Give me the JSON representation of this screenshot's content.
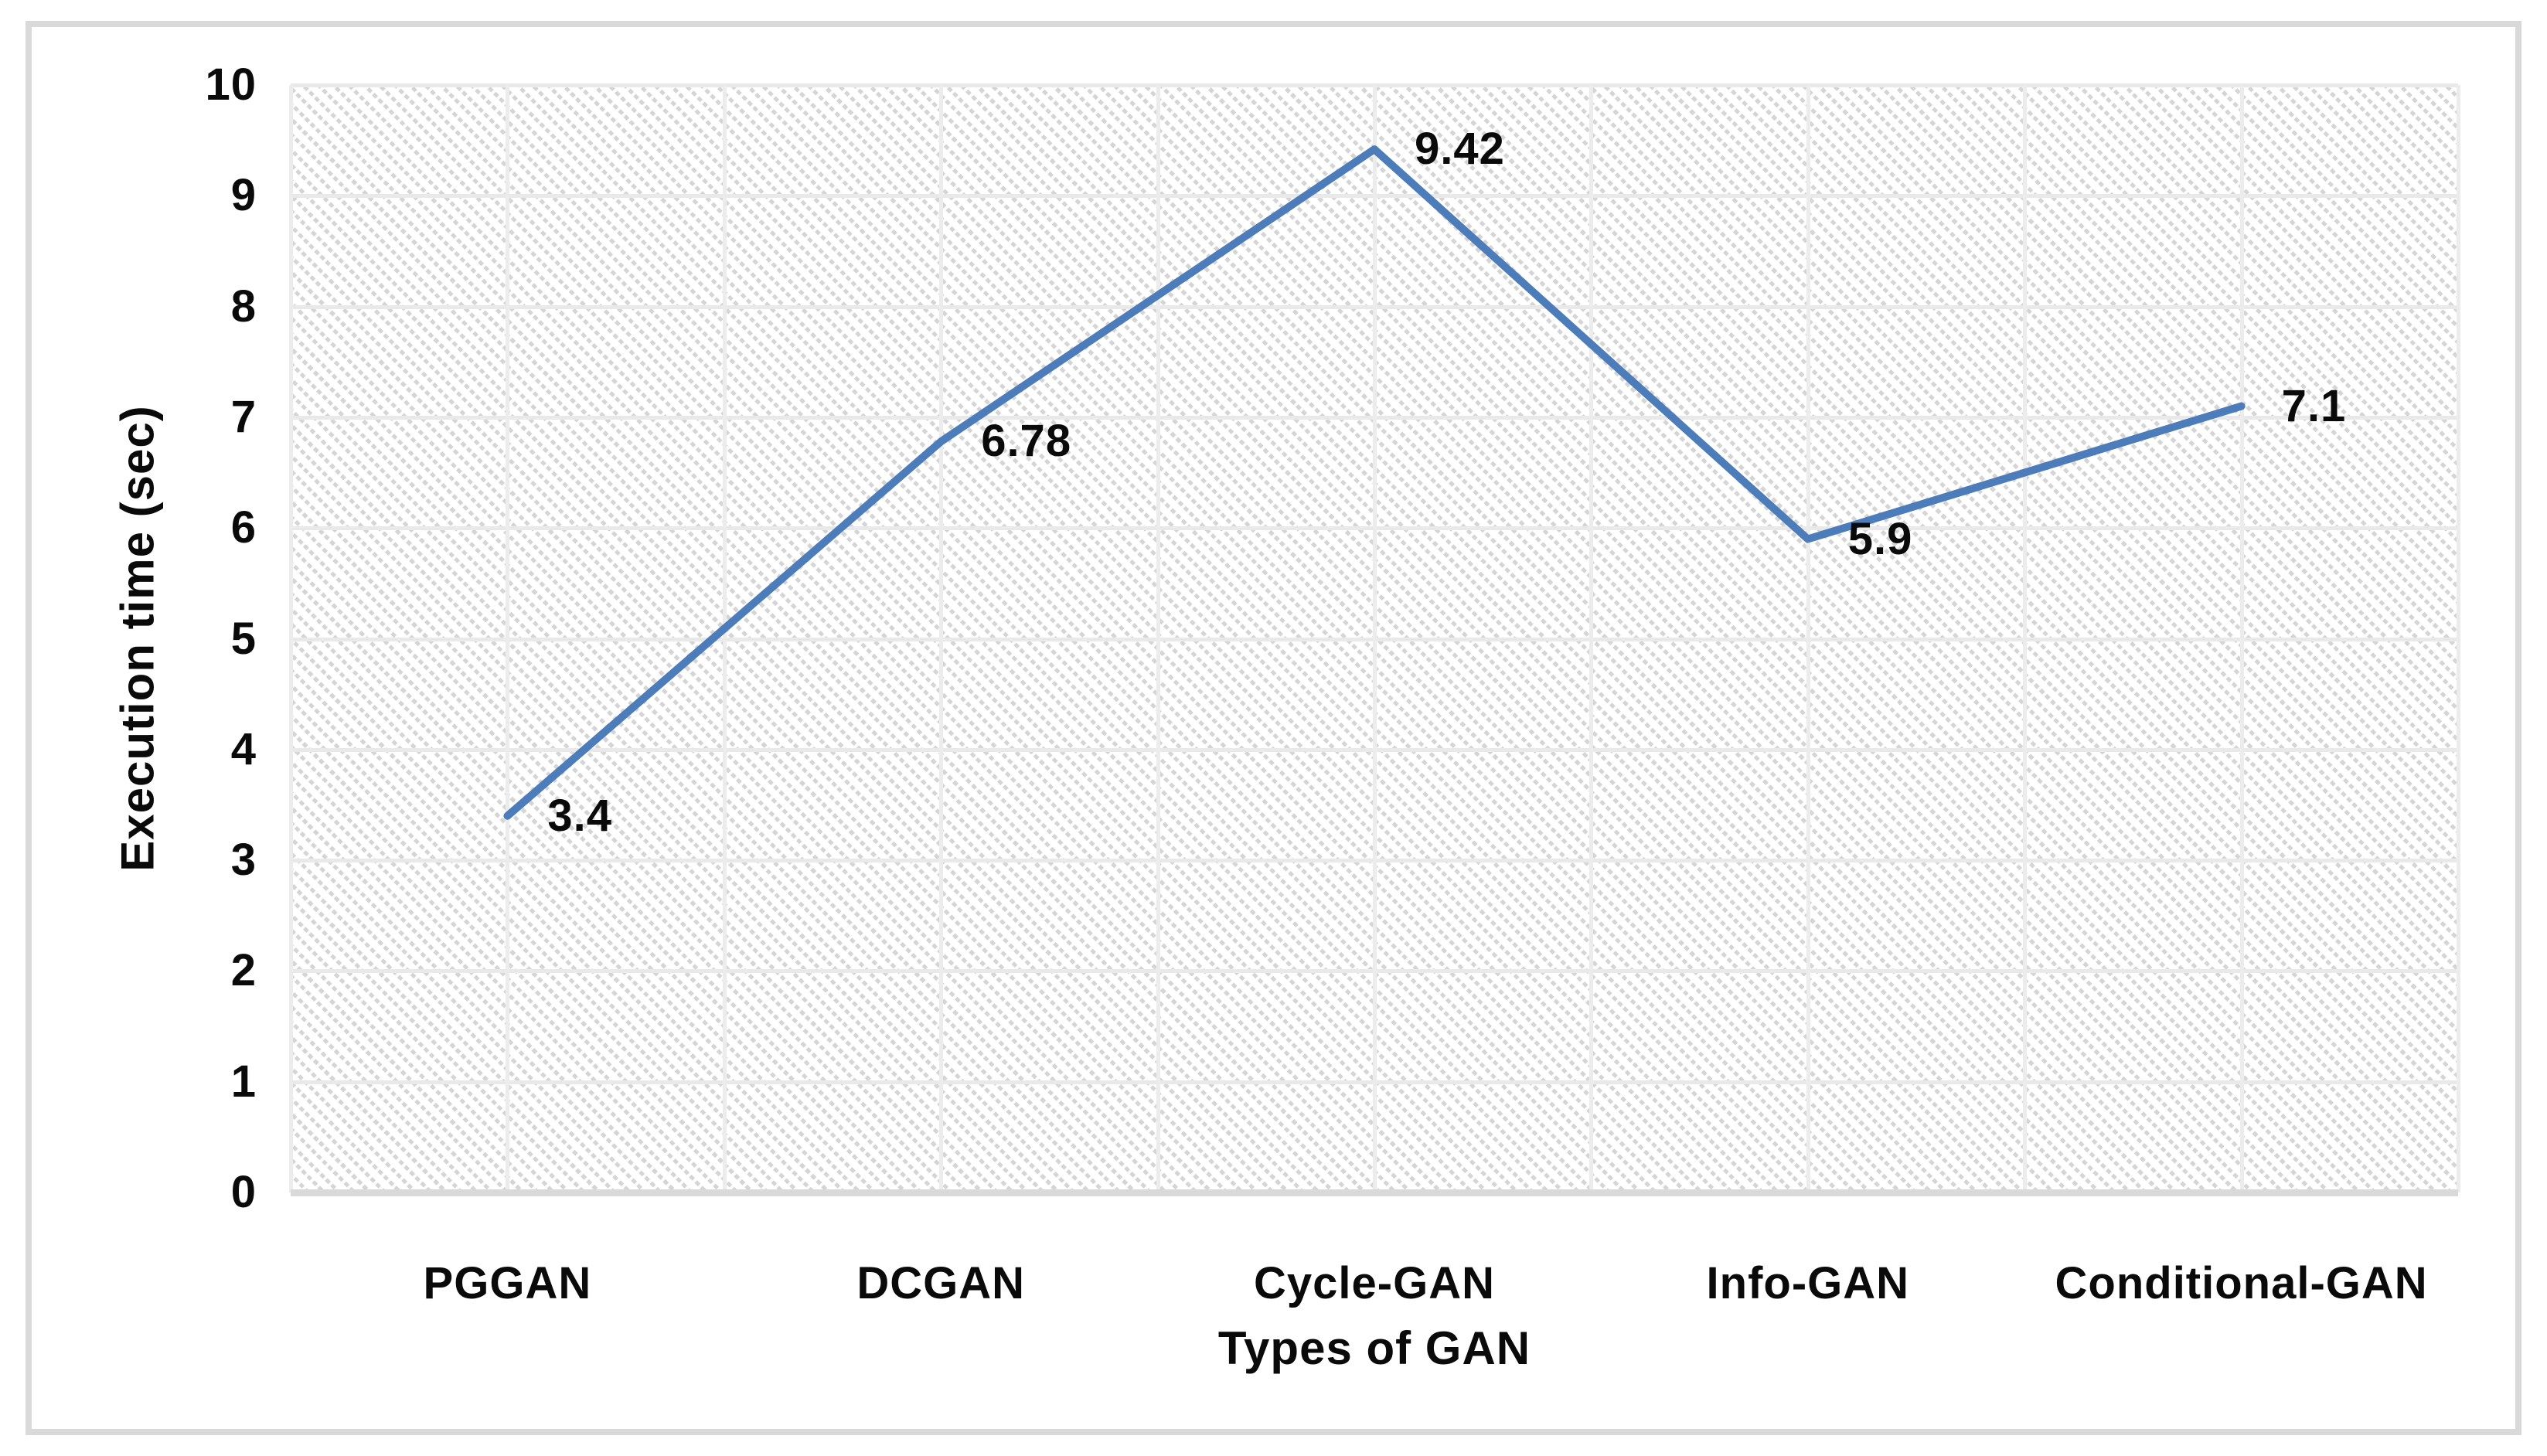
{
  "figure": {
    "background_color": "#ffffff",
    "border_color": "#d9d9d9"
  },
  "chart_data": {
    "type": "line",
    "title": "",
    "xlabel": "Types of GAN",
    "ylabel": "Execution time (sec)",
    "categories": [
      "PGGAN",
      "DCGAN",
      "Cycle-GAN",
      "Info-GAN",
      "Conditional-GAN"
    ],
    "values": [
      3.4,
      6.78,
      9.42,
      5.9,
      7.1
    ],
    "data_labels": [
      "3.4",
      "6.78",
      "9.42",
      "5.9",
      "7.1"
    ],
    "data_label_position": "right",
    "ylim": [
      0,
      10
    ],
    "ytick_step": 1,
    "yticks": [
      "0",
      "1",
      "2",
      "3",
      "4",
      "5",
      "6",
      "7",
      "8",
      "9",
      "10"
    ],
    "grid": true,
    "legend": "none",
    "line_color": "#4c7cba",
    "gridline_color": "#e9e9e9",
    "axis_line_color": "#d9d9d9",
    "plot_hatch": "light-downward-diagonal",
    "text_color": "#0a0a0a"
  }
}
